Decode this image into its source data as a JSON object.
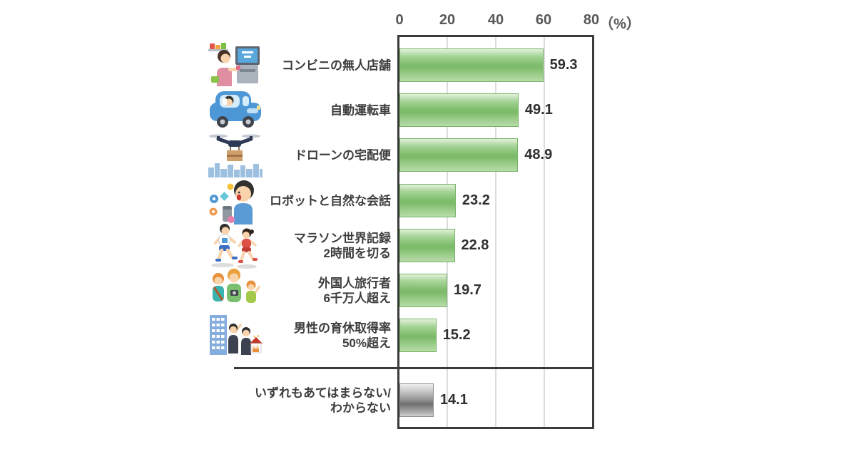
{
  "chart_data": {
    "type": "bar",
    "orientation": "horizontal",
    "unit": "%",
    "axis": {
      "ticks": [
        "0",
        "20",
        "40",
        "60",
        "80"
      ],
      "unit_label": "（%）",
      "max": 80,
      "gridlines": [
        20,
        40,
        60
      ],
      "range": [
        0,
        80
      ]
    },
    "legend": "none",
    "grid": "vertical-only",
    "categories": [
      "コンビニの無人店舗",
      "自動運転車",
      "ドローンの宅配便",
      "ロボットと自然な会話",
      "マラソン世界記録 2時間を切る",
      "外国人旅行者 6千万人超え",
      "男性の育休取得率 50%超え",
      "いずれもあてはまらない/わからない"
    ],
    "values": [
      59.3,
      49.1,
      48.9,
      23.2,
      22.8,
      19.7,
      15.2,
      14.1
    ],
    "rows": [
      {
        "label_lines": [
          "コンビニの無人店舗"
        ],
        "value": 59.3,
        "value_label": "59.3",
        "icon": "self-checkout-illustration",
        "style": "green"
      },
      {
        "label_lines": [
          "自動運転車"
        ],
        "value": 49.1,
        "value_label": "49.1",
        "icon": "self-driving-car-illustration",
        "style": "green"
      },
      {
        "label_lines": [
          "ドローンの宅配便"
        ],
        "value": 48.9,
        "value_label": "48.9",
        "icon": "drone-delivery-illustration",
        "style": "green"
      },
      {
        "label_lines": [
          "ロボットと自然な会話"
        ],
        "value": 23.2,
        "value_label": "23.2",
        "icon": "smart-speaker-conversation-illustration",
        "style": "green"
      },
      {
        "label_lines": [
          "マラソン世界記録",
          "2時間を切る"
        ],
        "value": 22.8,
        "value_label": "22.8",
        "icon": "marathon-runners-illustration",
        "style": "green"
      },
      {
        "label_lines": [
          "外国人旅行者",
          "6千万人超え"
        ],
        "value": 19.7,
        "value_label": "19.7",
        "icon": "foreign-tourists-illustration",
        "style": "green"
      },
      {
        "label_lines": [
          "男性の育休取得率",
          "50%超え"
        ],
        "value": 15.2,
        "value_label": "15.2",
        "icon": "paternity-leave-illustration",
        "style": "green"
      },
      {
        "label_lines": [
          "いずれもあてはまらない/",
          "わからない"
        ],
        "value": 14.1,
        "value_label": "14.1",
        "icon": null,
        "style": "gray"
      }
    ],
    "colors": {
      "bar_green_top": "#e3f1db",
      "bar_green_mid": "#7bba68",
      "bar_green_bottom": "#b9dcaa",
      "bar_green_border": "#77b366",
      "bar_gray_top": "#eeeeee",
      "bar_gray_mid": "#6f6f6f",
      "bar_gray_bottom": "#d2d2d2",
      "bar_gray_border": "#909090",
      "plot_border": "#3b3b3b",
      "gridline": "#dcdcdc",
      "label_text": "#3d3d3d",
      "value_text": "#2f2f2f",
      "tick_text": "#575757"
    }
  }
}
